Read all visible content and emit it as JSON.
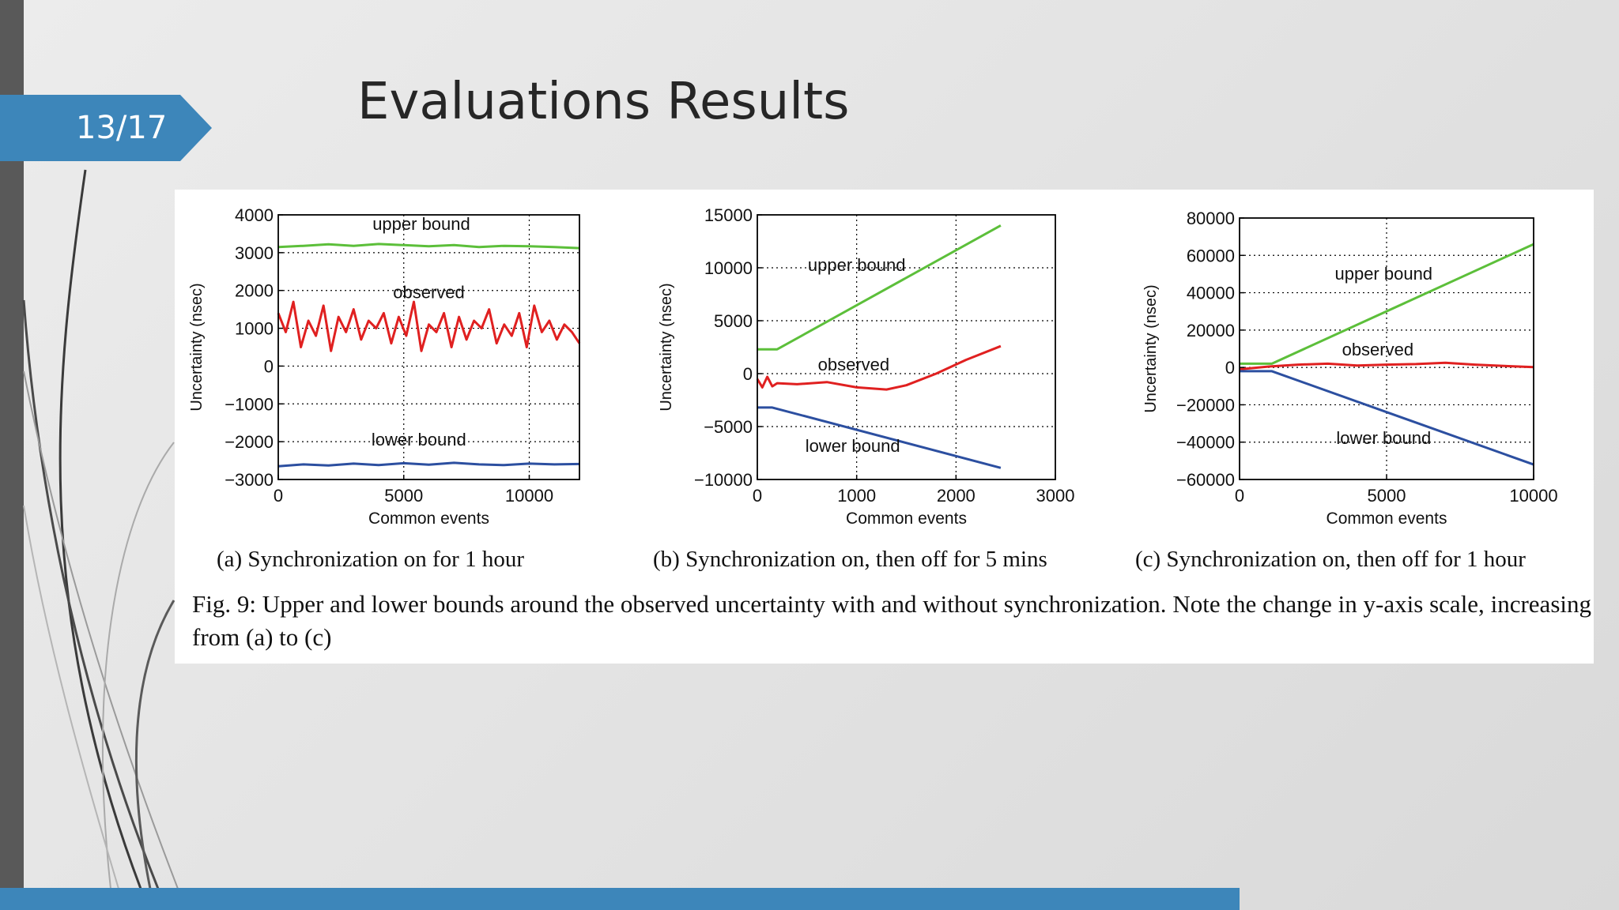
{
  "slide": {
    "number": "13/17",
    "title": "Evaluations Results"
  },
  "figure": {
    "caption": "Fig. 9: Upper and lower bounds around the observed uncertainty with and without synchronization. Note the change in y-axis scale, increasing from (a) to (c)"
  },
  "colors": {
    "accent": "#3d86ba",
    "upper_bound": "#5cbf3a",
    "observed": "#e02020",
    "lower_bound": "#2c4fa0"
  },
  "chart_data": [
    {
      "type": "line",
      "caption": "(a) Synchronization on for 1 hour",
      "xlabel": "Common events",
      "ylabel": "Uncertainty (nsec)",
      "xlim": [
        0,
        12000
      ],
      "ylim": [
        -3000,
        4000
      ],
      "xticks": [
        0,
        5000,
        10000
      ],
      "yticks": [
        -3000,
        -2000,
        -1000,
        0,
        1000,
        2000,
        3000,
        4000
      ],
      "xtick_labels": [
        "0",
        "5000",
        "10000"
      ],
      "ytick_labels": [
        "−3000",
        "−2000",
        "−1000",
        "0",
        "1000",
        "2000",
        "3000",
        "4000"
      ],
      "grid": true,
      "annotations": [
        {
          "text": "upper bound",
          "x": 5700,
          "y": 3600
        },
        {
          "text": "observed",
          "x": 6000,
          "y": 1800
        },
        {
          "text": "lower bound",
          "x": 5600,
          "y": -2100
        }
      ],
      "series": [
        {
          "color_key": "upper_bound",
          "x": [
            0,
            1000,
            2000,
            3000,
            4000,
            5000,
            6000,
            7000,
            8000,
            9000,
            10000,
            11000,
            12000
          ],
          "values": [
            3150,
            3180,
            3220,
            3180,
            3230,
            3200,
            3170,
            3200,
            3150,
            3180,
            3170,
            3150,
            3120
          ]
        },
        {
          "color_key": "observed",
          "x": [
            0,
            300,
            600,
            900,
            1200,
            1500,
            1800,
            2100,
            2400,
            2700,
            3000,
            3300,
            3600,
            3900,
            4200,
            4500,
            4800,
            5100,
            5400,
            5700,
            6000,
            6300,
            6600,
            6900,
            7200,
            7500,
            7800,
            8100,
            8400,
            8700,
            9000,
            9300,
            9600,
            9900,
            10200,
            10500,
            10800,
            11100,
            11400,
            11700,
            12000
          ],
          "values": [
            1400,
            900,
            1700,
            500,
            1200,
            800,
            1600,
            400,
            1300,
            900,
            1500,
            700,
            1200,
            1000,
            1400,
            600,
            1300,
            800,
            1700,
            400,
            1100,
            900,
            1400,
            500,
            1300,
            700,
            1200,
            1000,
            1500,
            600,
            1100,
            800,
            1400,
            500,
            1600,
            900,
            1200,
            700,
            1100,
            900,
            600
          ]
        },
        {
          "color_key": "lower_bound",
          "x": [
            0,
            1000,
            2000,
            3000,
            4000,
            5000,
            6000,
            7000,
            8000,
            9000,
            10000,
            11000,
            12000
          ],
          "values": [
            -2650,
            -2600,
            -2630,
            -2580,
            -2620,
            -2570,
            -2610,
            -2560,
            -2600,
            -2620,
            -2580,
            -2600,
            -2590
          ]
        }
      ]
    },
    {
      "type": "line",
      "caption": "(b) Synchronization on, then off for 5 mins",
      "xlabel": "Common events",
      "ylabel": "Uncertainty (nsec)",
      "xlim": [
        0,
        3000
      ],
      "ylim": [
        -10000,
        15000
      ],
      "xticks": [
        0,
        1000,
        2000,
        3000
      ],
      "yticks": [
        -10000,
        -5000,
        0,
        5000,
        10000,
        15000
      ],
      "xtick_labels": [
        "0",
        "1000",
        "2000",
        "3000"
      ],
      "ytick_labels": [
        "−10000",
        "−5000",
        "0",
        "5000",
        "10000",
        "15000"
      ],
      "grid": true,
      "annotations": [
        {
          "text": "upper bound",
          "x": 1000,
          "y": 9700
        },
        {
          "text": "observed",
          "x": 970,
          "y": 300
        },
        {
          "text": "lower bound",
          "x": 960,
          "y": -7400
        }
      ],
      "series": [
        {
          "color_key": "upper_bound",
          "x": [
            0,
            200,
            2450
          ],
          "values": [
            2300,
            2300,
            14000
          ]
        },
        {
          "color_key": "observed",
          "x": [
            0,
            50,
            100,
            150,
            200,
            400,
            700,
            1000,
            1300,
            1500,
            1800,
            2100,
            2450
          ],
          "values": [
            -500,
            -1300,
            -300,
            -1200,
            -900,
            -1000,
            -800,
            -1300,
            -1500,
            -1100,
            0,
            1300,
            2600
          ]
        },
        {
          "color_key": "lower_bound",
          "x": [
            0,
            150,
            2450
          ],
          "values": [
            -3200,
            -3200,
            -8900
          ]
        }
      ]
    },
    {
      "type": "line",
      "caption": "(c) Synchronization on, then off for 1 hour",
      "xlabel": "Common events",
      "ylabel": "Uncertainty (nsec)",
      "xlim": [
        0,
        10000
      ],
      "ylim": [
        -60000,
        80000
      ],
      "xticks": [
        0,
        5000,
        10000
      ],
      "yticks": [
        -60000,
        -40000,
        -20000,
        0,
        20000,
        40000,
        60000,
        80000
      ],
      "xtick_labels": [
        "0",
        "5000",
        "10000"
      ],
      "ytick_labels": [
        "−60000",
        "−40000",
        "−20000",
        "0",
        "20000",
        "40000",
        "60000",
        "80000"
      ],
      "grid": true,
      "annotations": [
        {
          "text": "upper bound",
          "x": 4900,
          "y": 47000
        },
        {
          "text": "observed",
          "x": 4700,
          "y": 6500
        },
        {
          "text": "lower bound",
          "x": 4900,
          "y": -41000
        }
      ],
      "series": [
        {
          "color_key": "upper_bound",
          "x": [
            0,
            1100,
            10000
          ],
          "values": [
            2000,
            2000,
            66000
          ]
        },
        {
          "color_key": "observed",
          "x": [
            0,
            1000,
            2000,
            3000,
            4000,
            5000,
            6000,
            7000,
            8000,
            9000,
            10000
          ],
          "values": [
            -1000,
            500,
            1500,
            2000,
            1000,
            1500,
            1800,
            2500,
            1500,
            800,
            200
          ]
        },
        {
          "color_key": "lower_bound",
          "x": [
            0,
            1100,
            10000
          ],
          "values": [
            -2000,
            -2000,
            -52000
          ]
        }
      ]
    }
  ]
}
